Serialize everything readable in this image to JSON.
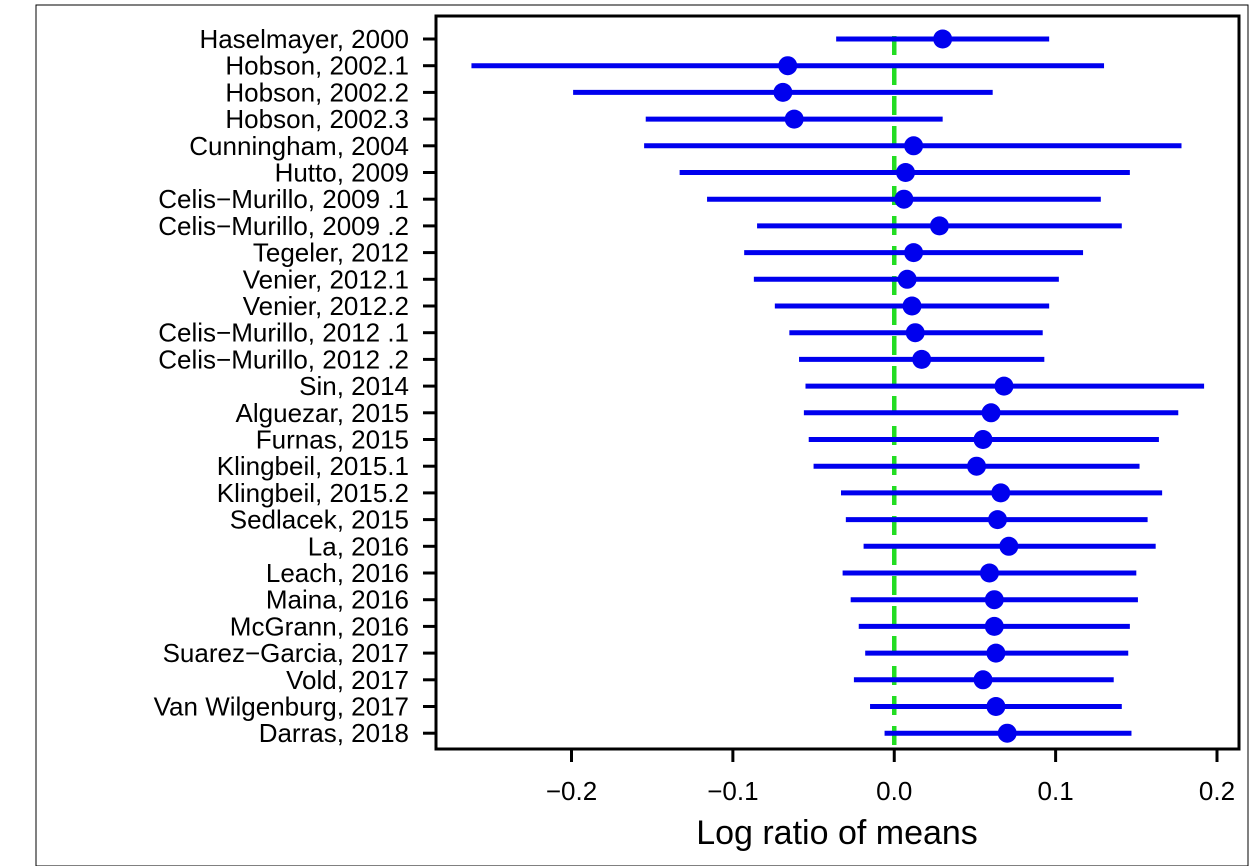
{
  "chart_data": {
    "type": "forest",
    "title": "",
    "xlabel": "Log ratio of means",
    "ylabel": "",
    "xlim": [
      -0.28,
      0.21
    ],
    "xticks": [
      {
        "value": -0.2,
        "label": "−0.2"
      },
      {
        "value": -0.1,
        "label": "−0.1"
      },
      {
        "value": 0.0,
        "label": "0.0"
      },
      {
        "value": 0.1,
        "label": "0.1"
      },
      {
        "value": 0.2,
        "label": "0.2"
      }
    ],
    "reference_line": {
      "x": 0.0,
      "style": "dashed",
      "color": "#22dd22"
    },
    "colors": {
      "estimate": "#0000ee",
      "ci": "#0000ee"
    },
    "grid": false,
    "studies": [
      {
        "label": "Haselmayer, 2000",
        "estimate": 0.03,
        "lower": -0.036,
        "upper": 0.096
      },
      {
        "label": "Hobson, 2002.1",
        "estimate": -0.066,
        "lower": -0.262,
        "upper": 0.13
      },
      {
        "label": "Hobson, 2002.2",
        "estimate": -0.069,
        "lower": -0.199,
        "upper": 0.061
      },
      {
        "label": "Hobson, 2002.3",
        "estimate": -0.062,
        "lower": -0.154,
        "upper": 0.03
      },
      {
        "label": "Cunningham, 2004",
        "estimate": 0.012,
        "lower": -0.155,
        "upper": 0.178
      },
      {
        "label": "Hutto, 2009",
        "estimate": 0.007,
        "lower": -0.133,
        "upper": 0.146
      },
      {
        "label": "Celis−Murillo, 2009 .1",
        "estimate": 0.006,
        "lower": -0.116,
        "upper": 0.128
      },
      {
        "label": "Celis−Murillo, 2009 .2",
        "estimate": 0.028,
        "lower": -0.085,
        "upper": 0.141
      },
      {
        "label": "Tegeler, 2012",
        "estimate": 0.012,
        "lower": -0.093,
        "upper": 0.117
      },
      {
        "label": "Venier, 2012.1",
        "estimate": 0.008,
        "lower": -0.087,
        "upper": 0.102
      },
      {
        "label": "Venier, 2012.2",
        "estimate": 0.011,
        "lower": -0.074,
        "upper": 0.096
      },
      {
        "label": "Celis−Murillo, 2012 .1",
        "estimate": 0.013,
        "lower": -0.065,
        "upper": 0.092
      },
      {
        "label": "Celis−Murillo, 2012 .2",
        "estimate": 0.017,
        "lower": -0.059,
        "upper": 0.093
      },
      {
        "label": "Sin, 2014",
        "estimate": 0.068,
        "lower": -0.055,
        "upper": 0.192
      },
      {
        "label": "Alguezar, 2015",
        "estimate": 0.06,
        "lower": -0.056,
        "upper": 0.176
      },
      {
        "label": "Furnas, 2015",
        "estimate": 0.055,
        "lower": -0.053,
        "upper": 0.164
      },
      {
        "label": "Klingbeil, 2015.1",
        "estimate": 0.051,
        "lower": -0.05,
        "upper": 0.152
      },
      {
        "label": "Klingbeil, 2015.2",
        "estimate": 0.066,
        "lower": -0.033,
        "upper": 0.166
      },
      {
        "label": "Sedlacek, 2015",
        "estimate": 0.064,
        "lower": -0.03,
        "upper": 0.157
      },
      {
        "label": "La, 2016",
        "estimate": 0.071,
        "lower": -0.019,
        "upper": 0.162
      },
      {
        "label": "Leach, 2016",
        "estimate": 0.059,
        "lower": -0.032,
        "upper": 0.15
      },
      {
        "label": "Maina, 2016",
        "estimate": 0.062,
        "lower": -0.027,
        "upper": 0.151
      },
      {
        "label": "McGrann, 2016",
        "estimate": 0.062,
        "lower": -0.022,
        "upper": 0.146
      },
      {
        "label": "Suarez−Garcia, 2017",
        "estimate": 0.063,
        "lower": -0.018,
        "upper": 0.145
      },
      {
        "label": "Vold, 2017",
        "estimate": 0.055,
        "lower": -0.025,
        "upper": 0.136
      },
      {
        "label": "Van Wilgenburg, 2017",
        "estimate": 0.063,
        "lower": -0.015,
        "upper": 0.141
      },
      {
        "label": "Darras, 2018",
        "estimate": 0.07,
        "lower": -0.006,
        "upper": 0.147
      }
    ]
  }
}
